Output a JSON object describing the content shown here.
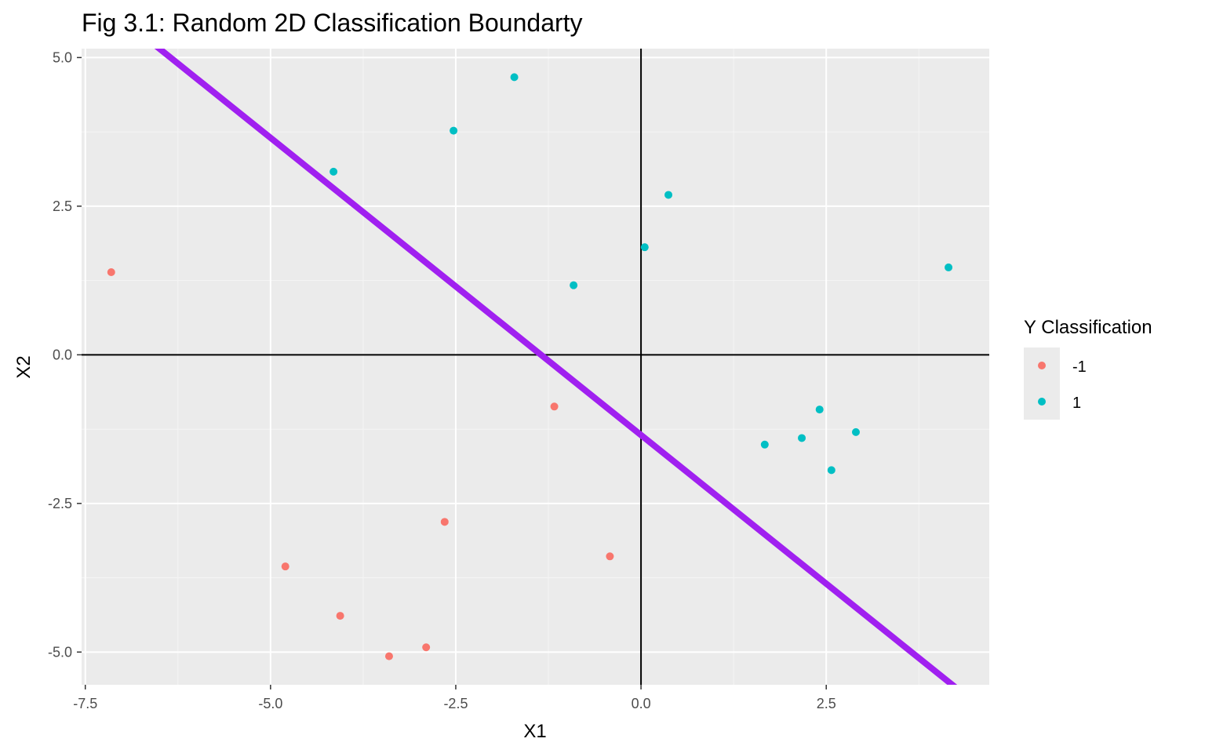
{
  "chart_data": {
    "type": "scatter",
    "title": "Fig 3.1: Random 2D Classification Boundarty",
    "xlabel": "X1",
    "ylabel": "X2",
    "xlim": [
      -7.55,
      4.7
    ],
    "ylim": [
      -5.55,
      5.15
    ],
    "x_ticks": [
      -7.5,
      -5.0,
      -2.5,
      0.0,
      2.5
    ],
    "x_tick_labels": [
      "-7.5",
      "-5.0",
      "-2.5",
      "0.0",
      "2.5"
    ],
    "y_ticks": [
      5.0,
      2.5,
      0.0,
      -2.5,
      -5.0
    ],
    "y_tick_labels": [
      "5.0",
      "2.5",
      "0.0",
      "-2.5",
      "-5.0"
    ],
    "grid": true,
    "reference_lines": {
      "x0": true,
      "y0": true,
      "color": "#000000"
    },
    "boundary": {
      "slope": -1.0,
      "intercept": -1.35,
      "color": "#A020F0"
    },
    "legend": {
      "title": "Y Classification",
      "position": "right",
      "entries": [
        {
          "label": "-1",
          "color": "#F8766D"
        },
        {
          "label": "1",
          "color": "#00BFC4"
        }
      ]
    },
    "series": [
      {
        "name": "-1",
        "color": "#F8766D",
        "points": [
          [
            -7.15,
            1.39
          ],
          [
            -1.17,
            -0.87
          ],
          [
            -2.65,
            -2.81
          ],
          [
            -4.8,
            -3.56
          ],
          [
            -0.42,
            -3.39
          ],
          [
            -4.06,
            -4.39
          ],
          [
            -2.9,
            -4.92
          ],
          [
            -3.4,
            -5.07
          ]
        ]
      },
      {
        "name": "1",
        "color": "#00BFC4",
        "points": [
          [
            -1.71,
            4.67
          ],
          [
            -2.53,
            3.77
          ],
          [
            -4.15,
            3.08
          ],
          [
            0.37,
            2.69
          ],
          [
            0.05,
            1.81
          ],
          [
            -0.91,
            1.17
          ],
          [
            4.15,
            1.47
          ],
          [
            1.67,
            -1.51
          ],
          [
            2.17,
            -1.4
          ],
          [
            2.41,
            -0.92
          ],
          [
            2.9,
            -1.3
          ],
          [
            2.57,
            -1.94
          ]
        ]
      }
    ]
  }
}
